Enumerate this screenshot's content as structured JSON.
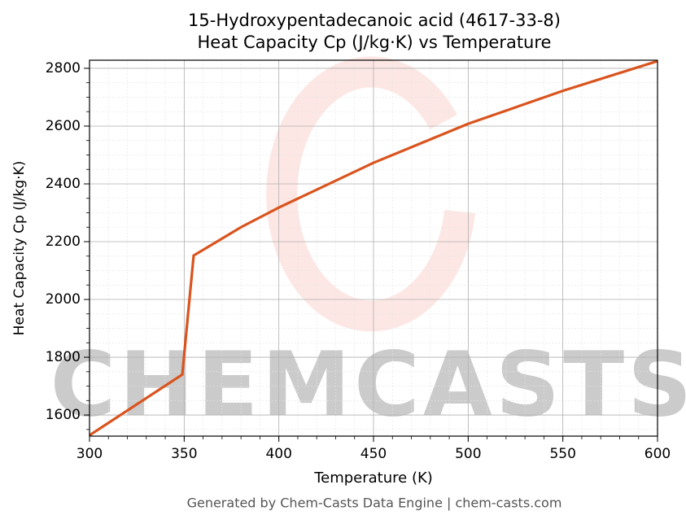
{
  "chart_data": {
    "type": "line",
    "title": [
      "15-Hydroxypentadecanoic acid (4617-33-8)",
      "Heat Capacity Cp (J/kg·K) vs Temperature"
    ],
    "x_label": "Temperature (K)",
    "y_label": "Heat Capacity Cp (J/kg·K)",
    "watermark": "CHEMCASTS",
    "footer": "Generated by Chem-Casts Data Engine | chem-casts.com",
    "x": [
      300,
      349,
      355,
      380,
      400,
      450,
      500,
      550,
      600
    ],
    "series": [
      {
        "name": "Cp",
        "color": "#d9541e",
        "values": [
          1530,
          1740,
          2152,
          2250,
          2318,
          2473,
          2608,
          2722,
          2825
        ]
      }
    ],
    "xlim": [
      300,
      600
    ],
    "ylim": [
      1527,
      2828
    ],
    "xticks": [
      300,
      350,
      400,
      450,
      500,
      550,
      600
    ],
    "yticks": [
      1600,
      1800,
      2000,
      2200,
      2400,
      2600,
      2800
    ],
    "grid": true,
    "minor_grid": true
  }
}
